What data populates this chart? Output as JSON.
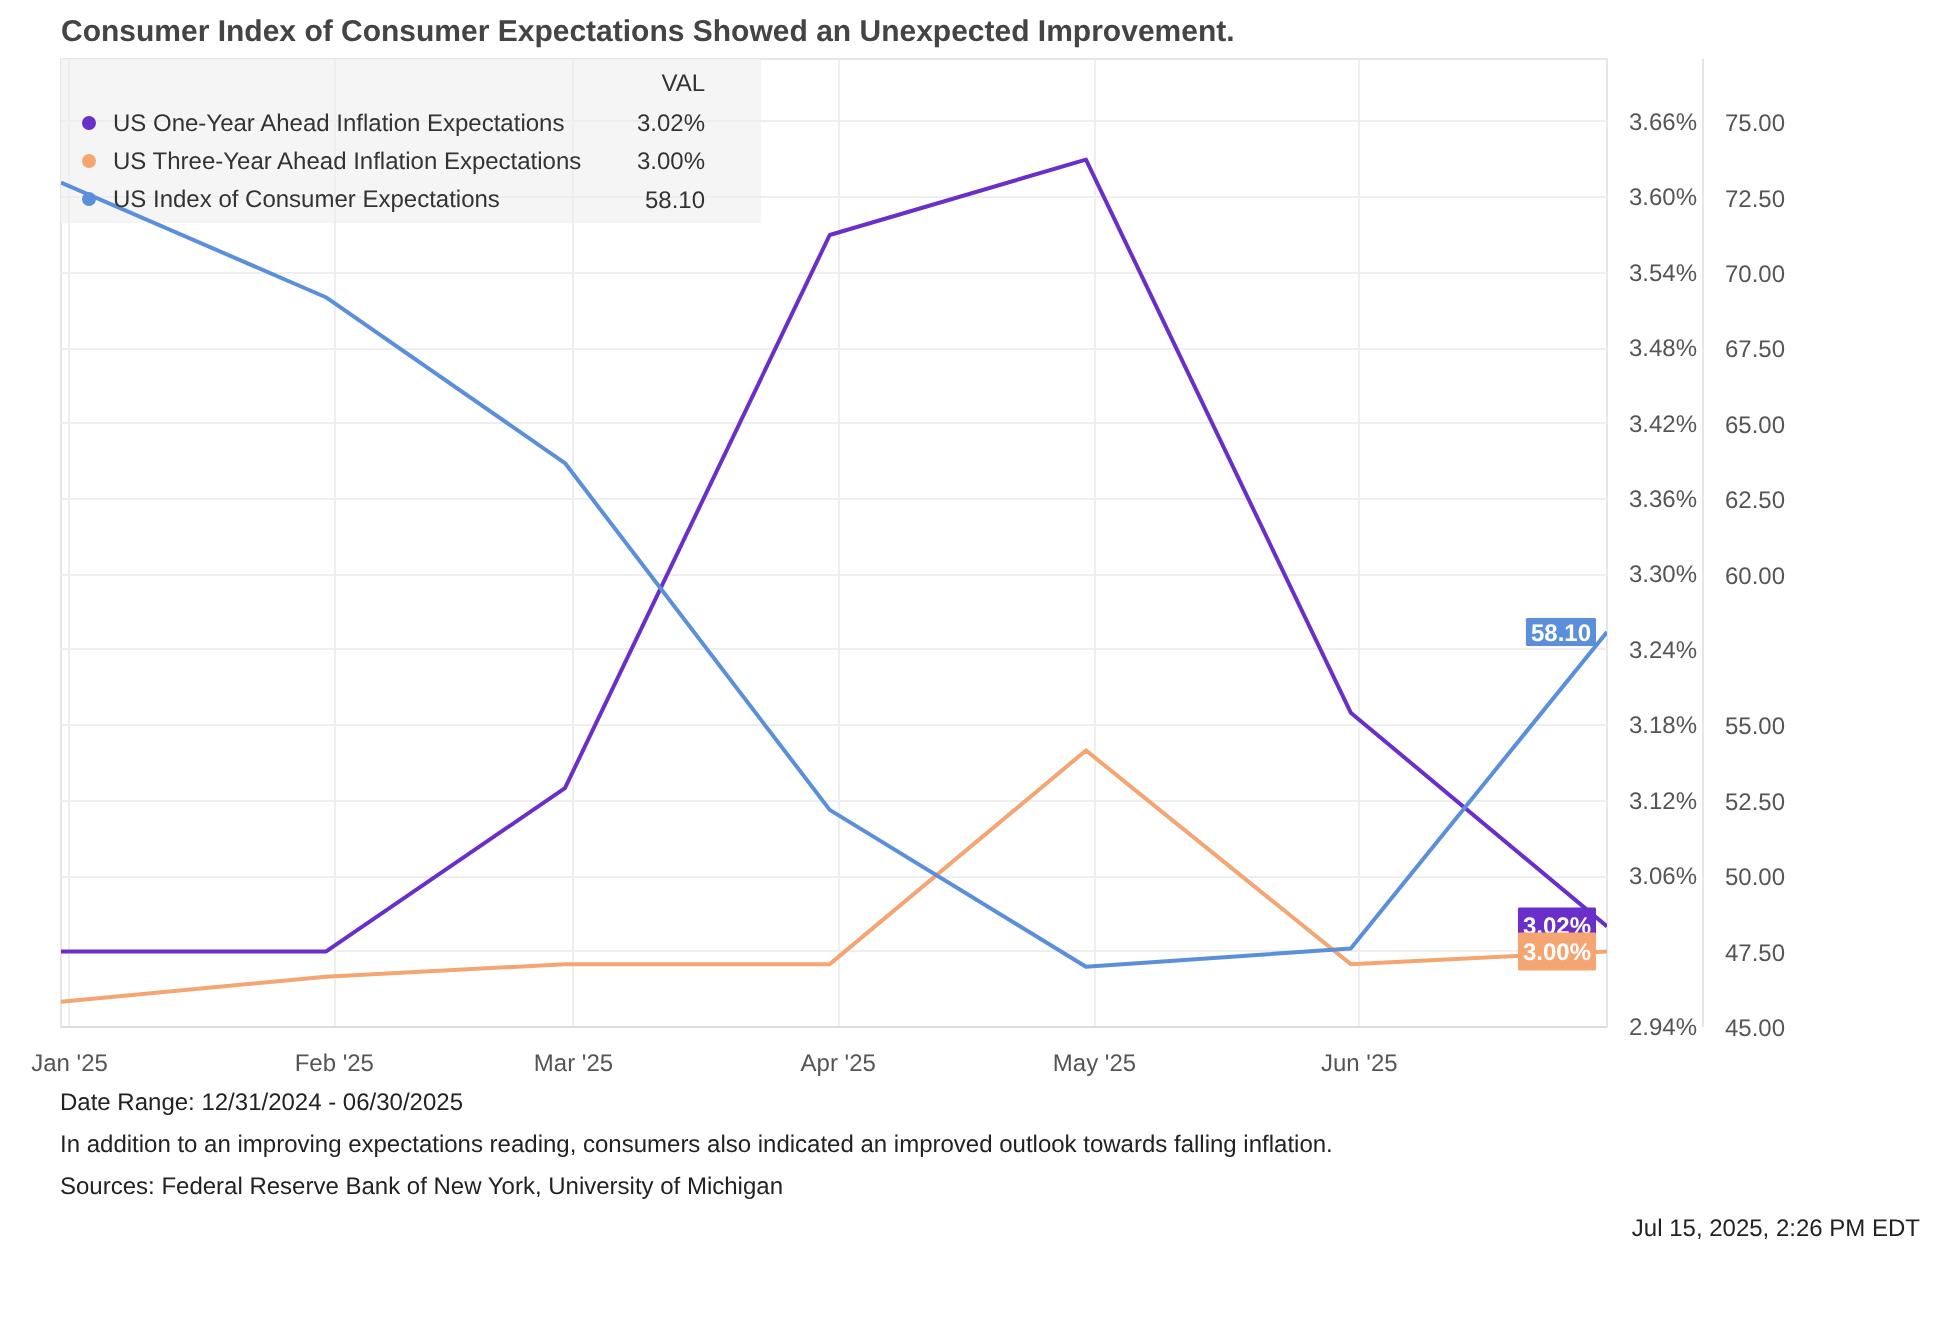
{
  "chart_data": {
    "type": "line",
    "title": "Consumer Index of Consumer Expectations Showed an Unexpected Improvement.",
    "x": [
      "2024-12-31",
      "2025-01-31",
      "2025-02-28",
      "2025-03-31",
      "2025-04-30",
      "2025-05-31",
      "2025-06-30"
    ],
    "series": [
      {
        "name": "US One-Year Ahead Inflation Expectations",
        "color": "#6a2fc9",
        "values": [
          3.0,
          3.0,
          3.13,
          3.57,
          3.63,
          3.19,
          3.02
        ],
        "value_labels": [
          null,
          null,
          null,
          null,
          null,
          null,
          "3.02%"
        ]
      },
      {
        "name": "US Three-Year Ahead Inflation Expectations",
        "color": "#f5a572",
        "values": [
          2.96,
          2.98,
          2.99,
          2.99,
          3.16,
          2.99,
          3.0
        ],
        "value_labels": [
          null,
          null,
          null,
          null,
          null,
          null,
          "3.00%"
        ]
      },
      {
        "name": "US Index of Consumer Expectations",
        "color": "#5b8fd9",
        "axis": "y2",
        "values": [
          73.0,
          69.2,
          63.7,
          52.2,
          47.0,
          47.6,
          58.1
        ],
        "value_labels": [
          null,
          null,
          null,
          null,
          null,
          null,
          "58.10"
        ]
      }
    ],
    "legend_title": "VAL",
    "xlim": [
      "2024-12-31",
      "2025-06-30"
    ],
    "xticks": [
      {
        "value": "2025-01-01",
        "label": "Jan '25"
      },
      {
        "value": "2025-02-01",
        "label": "Feb '25"
      },
      {
        "value": "2025-03-01",
        "label": "Mar '25"
      },
      {
        "value": "2025-04-01",
        "label": "Apr '25"
      },
      {
        "value": "2025-05-01",
        "label": "May '25"
      },
      {
        "value": "2025-06-01",
        "label": "Jun '25"
      }
    ],
    "ylim": [
      2.94,
      3.71
    ],
    "yticks": [
      {
        "value": 2.94,
        "label": "2.94%"
      },
      {
        "value": 3.0,
        "label": null
      },
      {
        "value": 3.06,
        "label": "3.06%"
      },
      {
        "value": 3.12,
        "label": "3.12%"
      },
      {
        "value": 3.18,
        "label": "3.18%"
      },
      {
        "value": 3.24,
        "label": "3.24%"
      },
      {
        "value": 3.3,
        "label": "3.30%"
      },
      {
        "value": 3.36,
        "label": "3.36%"
      },
      {
        "value": 3.42,
        "label": "3.42%"
      },
      {
        "value": 3.48,
        "label": "3.48%"
      },
      {
        "value": 3.54,
        "label": "3.54%"
      },
      {
        "value": 3.6,
        "label": "3.60%"
      },
      {
        "value": 3.66,
        "label": "3.66%"
      }
    ],
    "y2lim": [
      45,
      77.1
    ],
    "y2ticks": [
      {
        "value": 45,
        "label": "45.00"
      },
      {
        "value": 47.5,
        "label": "47.50"
      },
      {
        "value": 50,
        "label": "50.00"
      },
      {
        "value": 52.5,
        "label": "52.50"
      },
      {
        "value": 55,
        "label": "55.00"
      },
      {
        "value": 57.5,
        "label": null
      },
      {
        "value": 60,
        "label": "60.00"
      },
      {
        "value": 62.5,
        "label": "62.50"
      },
      {
        "value": 65,
        "label": "65.00"
      },
      {
        "value": 67.5,
        "label": "67.50"
      },
      {
        "value": 70,
        "label": "70.00"
      },
      {
        "value": 72.5,
        "label": "72.50"
      },
      {
        "value": 75,
        "label": "75.00"
      }
    ],
    "grid": true,
    "legend": "top left",
    "annotations": [
      "Date Range: 12/31/2024 - 06/30/2025",
      "In addition to an improving expectations reading, consumers also indicated an improved outlook towards falling inflation.",
      "Sources: Federal Reserve Bank of New York, University of Michigan",
      "Jul 15, 2025, 2:26 PM EDT"
    ]
  }
}
